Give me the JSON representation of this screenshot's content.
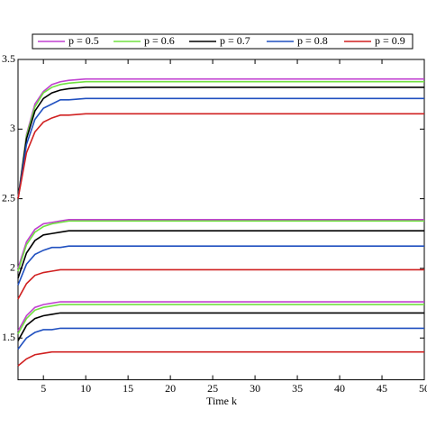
{
  "chart_data": {
    "type": "line",
    "xlabel": "Time k",
    "x": [
      2,
      3,
      4,
      5,
      6,
      7,
      8,
      10,
      15,
      20,
      30,
      40,
      50
    ],
    "xlim": [
      2,
      50
    ],
    "xticks": [
      5,
      10,
      15,
      20,
      25,
      30,
      35,
      40,
      45,
      50
    ],
    "ylim": [
      1.2,
      3.5
    ],
    "yticks": [
      1.5,
      2,
      2.5,
      3,
      3.5
    ],
    "legend": "top",
    "series": [
      {
        "name": "p = 0.5",
        "color": "#c040d0",
        "values": [
          [
            2.5,
            2.96,
            3.18,
            3.27,
            3.32,
            3.34,
            3.35,
            3.36,
            3.36,
            3.36,
            3.36,
            3.36,
            3.36
          ],
          [
            2.0,
            2.19,
            2.28,
            2.32,
            2.33,
            2.34,
            2.35,
            2.35,
            2.35,
            2.35,
            2.35,
            2.35,
            2.35
          ],
          [
            1.55,
            1.66,
            1.72,
            1.74,
            1.75,
            1.76,
            1.76,
            1.76,
            1.76,
            1.76,
            1.76,
            1.76,
            1.76
          ]
        ]
      },
      {
        "name": "p = 0.6",
        "color": "#70e040",
        "values": [
          [
            2.5,
            2.95,
            3.16,
            3.26,
            3.3,
            3.32,
            3.33,
            3.34,
            3.34,
            3.34,
            3.34,
            3.34,
            3.34
          ],
          [
            1.98,
            2.17,
            2.26,
            2.3,
            2.32,
            2.33,
            2.34,
            2.34,
            2.34,
            2.34,
            2.34,
            2.34,
            2.34
          ],
          [
            1.53,
            1.64,
            1.7,
            1.72,
            1.73,
            1.74,
            1.74,
            1.74,
            1.74,
            1.74,
            1.74,
            1.74,
            1.74
          ]
        ]
      },
      {
        "name": "p = 0.7",
        "color": "#000000",
        "values": [
          [
            2.5,
            2.93,
            3.13,
            3.22,
            3.26,
            3.28,
            3.29,
            3.3,
            3.3,
            3.3,
            3.3,
            3.3,
            3.3
          ],
          [
            1.93,
            2.11,
            2.2,
            2.24,
            2.25,
            2.26,
            2.27,
            2.27,
            2.27,
            2.27,
            2.27,
            2.27,
            2.27
          ],
          [
            1.48,
            1.59,
            1.64,
            1.66,
            1.67,
            1.68,
            1.68,
            1.68,
            1.68,
            1.68,
            1.68,
            1.68,
            1.68
          ]
        ]
      },
      {
        "name": "p = 0.8",
        "color": "#2050c0",
        "values": [
          [
            2.5,
            2.89,
            3.07,
            3.15,
            3.18,
            3.21,
            3.21,
            3.22,
            3.22,
            3.22,
            3.22,
            3.22,
            3.22
          ],
          [
            1.88,
            2.03,
            2.1,
            2.13,
            2.15,
            2.15,
            2.16,
            2.16,
            2.16,
            2.16,
            2.16,
            2.16,
            2.16
          ],
          [
            1.42,
            1.5,
            1.54,
            1.56,
            1.56,
            1.57,
            1.57,
            1.57,
            1.57,
            1.57,
            1.57,
            1.57,
            1.57
          ]
        ]
      },
      {
        "name": "p = 0.9",
        "color": "#d02020",
        "values": [
          [
            2.5,
            2.83,
            2.98,
            3.05,
            3.08,
            3.1,
            3.1,
            3.11,
            3.11,
            3.11,
            3.11,
            3.11,
            3.11
          ],
          [
            1.78,
            1.89,
            1.95,
            1.97,
            1.98,
            1.99,
            1.99,
            1.99,
            1.99,
            1.99,
            1.99,
            1.99,
            1.99
          ],
          [
            1.3,
            1.35,
            1.38,
            1.39,
            1.4,
            1.4,
            1.4,
            1.4,
            1.4,
            1.4,
            1.4,
            1.4,
            1.4
          ]
        ]
      }
    ]
  }
}
